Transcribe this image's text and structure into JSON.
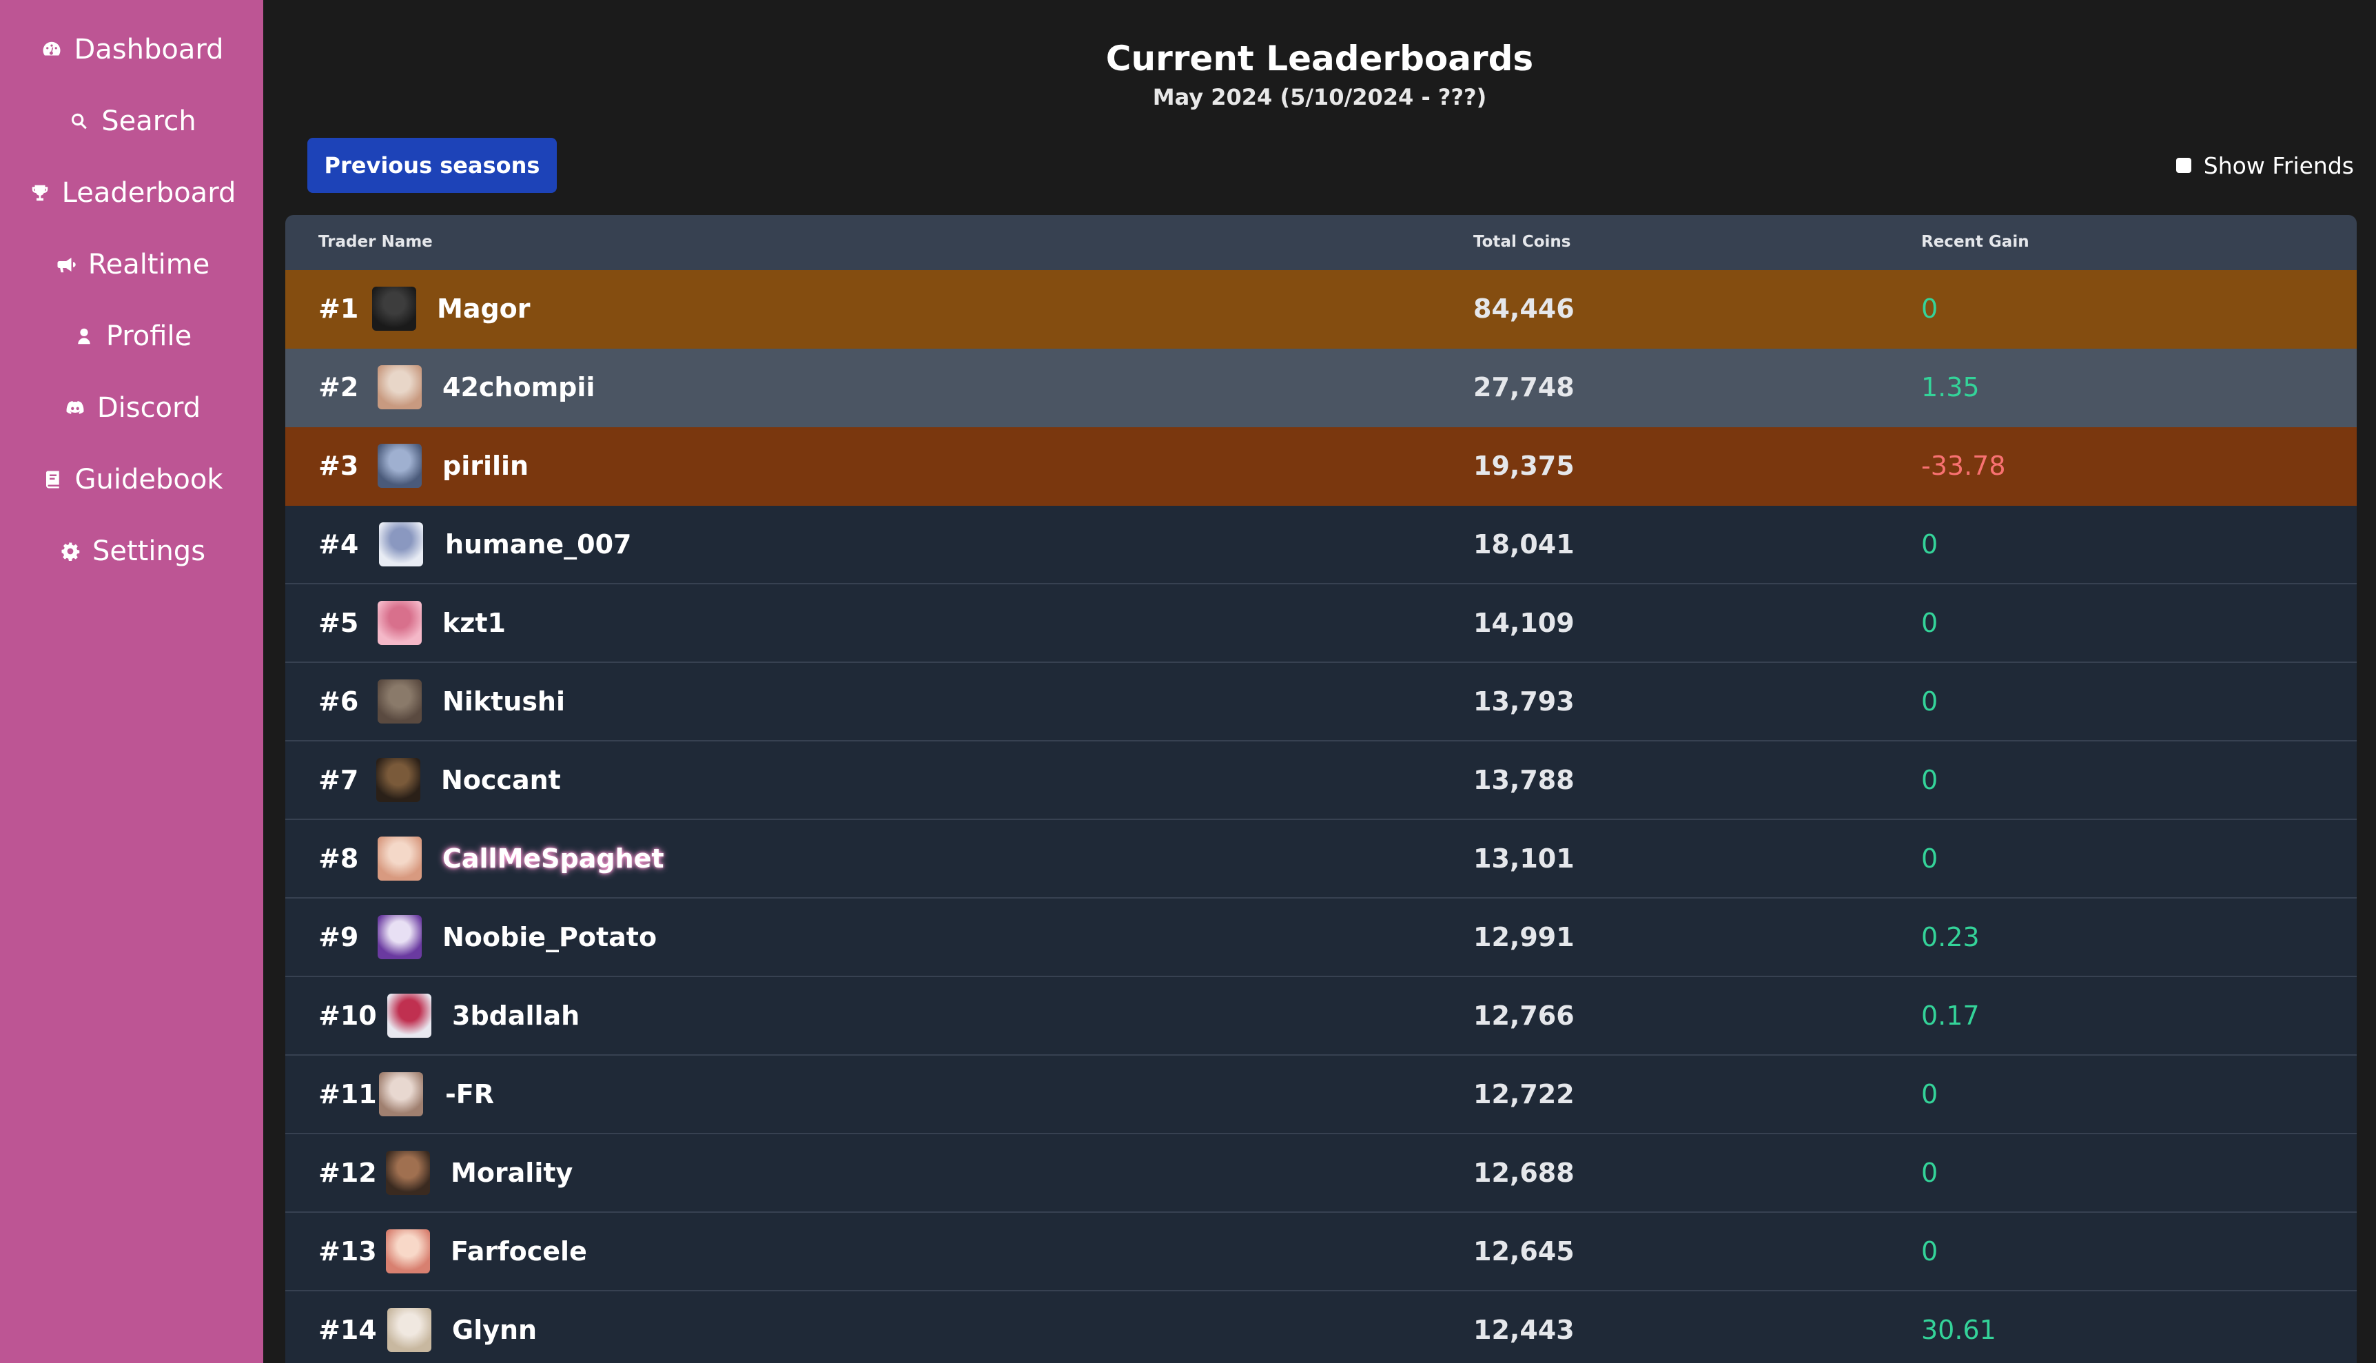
{
  "sidebar": {
    "items": [
      {
        "label": "Dashboard",
        "icon": "gauge-icon"
      },
      {
        "label": "Search",
        "icon": "search-icon"
      },
      {
        "label": "Leaderboard",
        "icon": "trophy-icon"
      },
      {
        "label": "Realtime",
        "icon": "megaphone-icon"
      },
      {
        "label": "Profile",
        "icon": "user-icon"
      },
      {
        "label": "Discord",
        "icon": "discord-icon"
      },
      {
        "label": "Guidebook",
        "icon": "book-icon"
      },
      {
        "label": "Settings",
        "icon": "gear-icon"
      }
    ]
  },
  "header": {
    "title": "Current Leaderboards",
    "subtitle": "May 2024 (5/10/2024 - ???)"
  },
  "controls": {
    "previous_seasons_label": "Previous seasons",
    "show_friends_label": "Show Friends",
    "show_friends_checked": false
  },
  "table": {
    "columns": {
      "name": "Trader Name",
      "coins": "Total Coins",
      "gain": "Recent Gain"
    },
    "rows": [
      {
        "rank": "#1",
        "name": "Magor",
        "coins": "84,446",
        "gain": "0",
        "trend": "pos",
        "highlight": "gold"
      },
      {
        "rank": "#2",
        "name": "42chompii",
        "coins": "27,748",
        "gain": "1.35",
        "trend": "pos",
        "highlight": "silver"
      },
      {
        "rank": "#3",
        "name": "pirilin",
        "coins": "19,375",
        "gain": "-33.78",
        "trend": "neg",
        "highlight": "bronze"
      },
      {
        "rank": "#4",
        "name": "humane_007",
        "coins": "18,041",
        "gain": "0",
        "trend": "pos"
      },
      {
        "rank": "#5",
        "name": "kzt1",
        "coins": "14,109",
        "gain": "0",
        "trend": "pos"
      },
      {
        "rank": "#6",
        "name": "Niktushi",
        "coins": "13,793",
        "gain": "0",
        "trend": "pos"
      },
      {
        "rank": "#7",
        "name": "Noccant",
        "coins": "13,788",
        "gain": "0",
        "trend": "pos"
      },
      {
        "rank": "#8",
        "name": "CallMeSpaghet",
        "coins": "13,101",
        "gain": "0",
        "trend": "pos",
        "glow": true
      },
      {
        "rank": "#9",
        "name": "Noobie_Potato",
        "coins": "12,991",
        "gain": "0.23",
        "trend": "pos"
      },
      {
        "rank": "#10",
        "name": "3bdallah",
        "coins": "12,766",
        "gain": "0.17",
        "trend": "pos"
      },
      {
        "rank": "#11",
        "name": "-FR",
        "coins": "12,722",
        "gain": "0",
        "trend": "pos"
      },
      {
        "rank": "#12",
        "name": "Morality",
        "coins": "12,688",
        "gain": "0",
        "trend": "pos"
      },
      {
        "rank": "#13",
        "name": "Farfocele",
        "coins": "12,645",
        "gain": "0",
        "trend": "pos"
      },
      {
        "rank": "#14",
        "name": "Glynn",
        "coins": "12,443",
        "gain": "30.61",
        "trend": "pos"
      }
    ]
  },
  "colors": {
    "sidebar": "#bd5594",
    "background": "#1b1b1b",
    "button": "#1d43b8",
    "gold_row": "#844d10",
    "silver_row": "#4b5563",
    "bronze_row": "#7a370e",
    "positive": "#34d399",
    "negative": "#f87171"
  }
}
